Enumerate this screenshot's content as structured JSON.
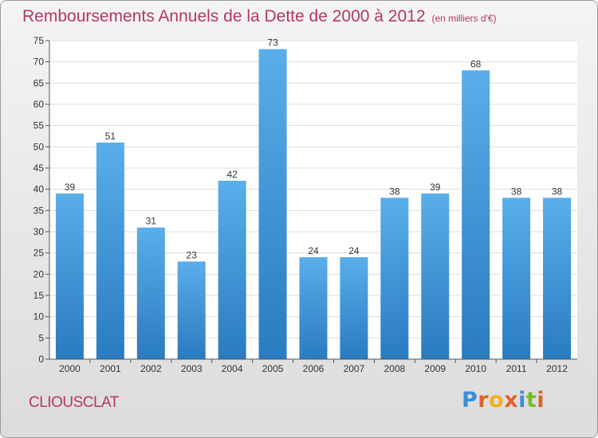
{
  "header": {
    "title": "Remboursements Annuels de la Dette de 2000 à 2012",
    "unit": "(en milliers d'€)"
  },
  "footer": {
    "commune": "CLIOUSCLAT",
    "logo_letters": [
      "P",
      "r",
      "o",
      "x",
      "i",
      "t",
      "i"
    ]
  },
  "colors": {
    "title": "#b5375f",
    "bar_top": "#5aaeea",
    "bar_bottom": "#2a7bc0",
    "logo": [
      "#3b8fd6",
      "#e0622c",
      "#f0b020",
      "#e0622c",
      "#3b8fd6",
      "#7ab830",
      "#e0622c"
    ]
  },
  "chart_data": {
    "type": "bar",
    "categories": [
      "2000",
      "2001",
      "2002",
      "2003",
      "2004",
      "2005",
      "2006",
      "2007",
      "2008",
      "2009",
      "2010",
      "2011",
      "2012"
    ],
    "values": [
      39,
      51,
      31,
      23,
      42,
      73,
      24,
      24,
      38,
      39,
      68,
      38,
      38
    ],
    "title": "Remboursements Annuels de la Dette de 2000 à 2012",
    "xlabel": "",
    "ylabel": "",
    "ylim": [
      0,
      75
    ],
    "yticks": [
      0,
      5,
      10,
      15,
      20,
      25,
      30,
      35,
      40,
      45,
      50,
      55,
      60,
      65,
      70,
      75
    ],
    "grid": true,
    "data_labels": true
  }
}
